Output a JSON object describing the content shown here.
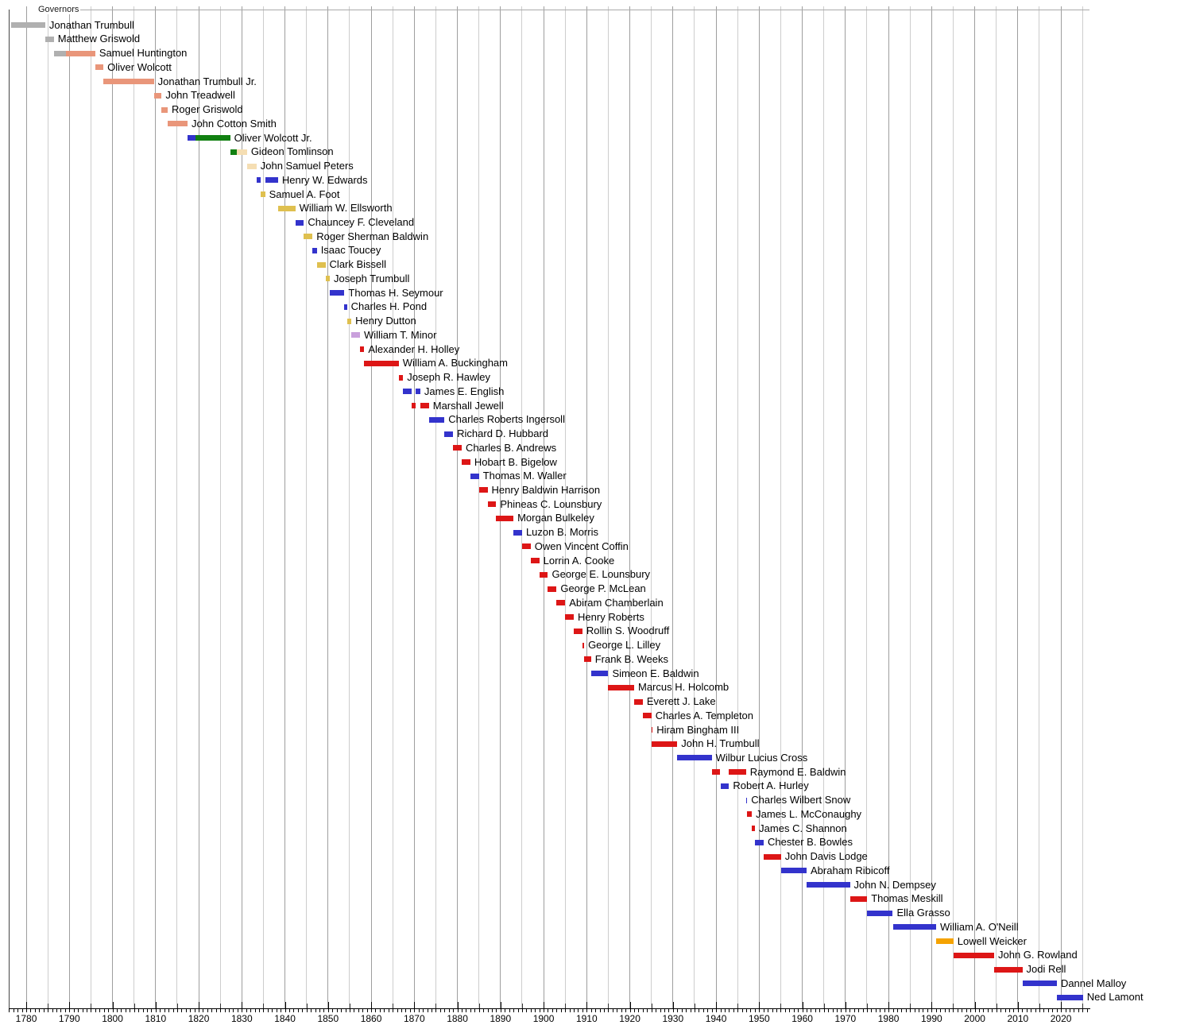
{
  "header": {
    "section_label": "Governors"
  },
  "chart_data": {
    "type": "bar",
    "variant": "timeline-gantt",
    "bar_orientation": "horizontal",
    "title": "Governors",
    "x_axis": {
      "min": 1775.9,
      "max": 2026.6,
      "major_tick_interval": 10,
      "gridline_interval": 5,
      "minor_tick_interval": 1,
      "tick_labels": [
        "1780",
        "1790",
        "1800",
        "1810",
        "1820",
        "1830",
        "1840",
        "1850",
        "1860",
        "1870",
        "1880",
        "1890",
        "1900",
        "1910",
        "1920",
        "1930",
        "1940",
        "1950",
        "1960",
        "1970",
        "1980",
        "1990",
        "2000",
        "2010",
        "2020"
      ]
    },
    "party_colors": {
      "none": "#b0b0b0",
      "federalist": "#e9967a",
      "dem_rep": "#3333cc",
      "toleration": "#118011",
      "national_republican": "#f5deb3",
      "whig": "#dfc04f",
      "know_nothing": "#c9a0dc",
      "republican": "#dd1616",
      "democratic": "#3333cc",
      "acp": "#f5a302"
    },
    "governors": [
      {
        "name": "Jonathan Trumbull",
        "segments": [
          {
            "from": 1776.5,
            "to": 1784.4,
            "party": "none"
          }
        ]
      },
      {
        "name": "Matthew Griswold",
        "segments": [
          {
            "from": 1784.4,
            "to": 1786.4,
            "party": "none"
          }
        ]
      },
      {
        "name": "Samuel Huntington",
        "segments": [
          {
            "from": 1786.4,
            "to": 1789.2,
            "party": "none"
          },
          {
            "from": 1789.2,
            "to": 1796.0,
            "party": "federalist"
          }
        ]
      },
      {
        "name": "Oliver Wolcott",
        "segments": [
          {
            "from": 1796.0,
            "to": 1797.9,
            "party": "federalist"
          }
        ]
      },
      {
        "name": "Jonathan Trumbull Jr.",
        "segments": [
          {
            "from": 1797.9,
            "to": 1809.6,
            "party": "federalist"
          }
        ]
      },
      {
        "name": "John Treadwell",
        "segments": [
          {
            "from": 1809.6,
            "to": 1811.4,
            "party": "federalist"
          }
        ]
      },
      {
        "name": "Roger Griswold",
        "segments": [
          {
            "from": 1811.4,
            "to": 1812.8,
            "party": "federalist"
          }
        ]
      },
      {
        "name": "John Cotton Smith",
        "segments": [
          {
            "from": 1812.8,
            "to": 1817.4,
            "party": "federalist"
          }
        ]
      },
      {
        "name": "Oliver Wolcott Jr.",
        "segments": [
          {
            "from": 1817.4,
            "to": 1819.2,
            "party": "dem_rep"
          },
          {
            "from": 1819.2,
            "to": 1827.3,
            "party": "toleration"
          }
        ]
      },
      {
        "name": "Gideon Tomlinson",
        "segments": [
          {
            "from": 1827.3,
            "to": 1828.8,
            "party": "toleration"
          },
          {
            "from": 1828.8,
            "to": 1831.2,
            "party": "national_republican"
          }
        ]
      },
      {
        "name": "John Samuel Peters",
        "segments": [
          {
            "from": 1831.2,
            "to": 1833.4,
            "party": "national_republican"
          }
        ]
      },
      {
        "name": "Henry W. Edwards",
        "segments": [
          {
            "from": 1833.4,
            "to": 1834.4,
            "party": "democratic"
          },
          {
            "from": 1835.4,
            "to": 1838.4,
            "party": "democratic"
          }
        ]
      },
      {
        "name": "Samuel A. Foot",
        "segments": [
          {
            "from": 1834.4,
            "to": 1835.4,
            "party": "whig"
          }
        ]
      },
      {
        "name": "William W. Ellsworth",
        "segments": [
          {
            "from": 1838.4,
            "to": 1842.4,
            "party": "whig"
          }
        ]
      },
      {
        "name": "Chauncey F. Cleveland",
        "segments": [
          {
            "from": 1842.4,
            "to": 1844.4,
            "party": "democratic"
          }
        ]
      },
      {
        "name": "Roger Sherman Baldwin",
        "segments": [
          {
            "from": 1844.4,
            "to": 1846.4,
            "party": "whig"
          }
        ]
      },
      {
        "name": "Isaac Toucey",
        "segments": [
          {
            "from": 1846.4,
            "to": 1847.4,
            "party": "democratic"
          }
        ]
      },
      {
        "name": "Clark Bissell",
        "segments": [
          {
            "from": 1847.4,
            "to": 1849.4,
            "party": "whig"
          }
        ]
      },
      {
        "name": "Joseph Trumbull",
        "segments": [
          {
            "from": 1849.4,
            "to": 1850.4,
            "party": "whig"
          }
        ]
      },
      {
        "name": "Thomas H. Seymour",
        "segments": [
          {
            "from": 1850.4,
            "to": 1853.8,
            "party": "democratic"
          }
        ]
      },
      {
        "name": "Charles H. Pond",
        "segments": [
          {
            "from": 1853.8,
            "to": 1854.4,
            "party": "democratic"
          }
        ]
      },
      {
        "name": "Henry Dutton",
        "segments": [
          {
            "from": 1854.4,
            "to": 1855.4,
            "party": "whig"
          }
        ]
      },
      {
        "name": "William T. Minor",
        "segments": [
          {
            "from": 1855.4,
            "to": 1857.4,
            "party": "know_nothing"
          }
        ]
      },
      {
        "name": "Alexander H. Holley",
        "segments": [
          {
            "from": 1857.4,
            "to": 1858.4,
            "party": "republican"
          }
        ]
      },
      {
        "name": "William A. Buckingham",
        "segments": [
          {
            "from": 1858.4,
            "to": 1866.4,
            "party": "republican"
          }
        ]
      },
      {
        "name": "Joseph R. Hawley",
        "segments": [
          {
            "from": 1866.4,
            "to": 1867.4,
            "party": "republican"
          }
        ]
      },
      {
        "name": "James E. English",
        "segments": [
          {
            "from": 1867.4,
            "to": 1869.4,
            "party": "democratic"
          },
          {
            "from": 1870.4,
            "to": 1871.4,
            "party": "democratic"
          }
        ]
      },
      {
        "name": "Marshall Jewell",
        "segments": [
          {
            "from": 1869.4,
            "to": 1870.4,
            "party": "republican"
          },
          {
            "from": 1871.4,
            "to": 1873.4,
            "party": "republican"
          }
        ]
      },
      {
        "name": "Charles Roberts Ingersoll",
        "segments": [
          {
            "from": 1873.4,
            "to": 1877.0,
            "party": "democratic"
          }
        ]
      },
      {
        "name": "Richard D. Hubbard",
        "segments": [
          {
            "from": 1877.0,
            "to": 1879.0,
            "party": "democratic"
          }
        ]
      },
      {
        "name": "Charles B. Andrews",
        "segments": [
          {
            "from": 1879.0,
            "to": 1881.0,
            "party": "republican"
          }
        ]
      },
      {
        "name": "Hobart B. Bigelow",
        "segments": [
          {
            "from": 1881.0,
            "to": 1883.0,
            "party": "republican"
          }
        ]
      },
      {
        "name": "Thomas M. Waller",
        "segments": [
          {
            "from": 1883.0,
            "to": 1885.0,
            "party": "democratic"
          }
        ]
      },
      {
        "name": "Henry Baldwin Harrison",
        "segments": [
          {
            "from": 1885.0,
            "to": 1887.0,
            "party": "republican"
          }
        ]
      },
      {
        "name": "Phineas C. Lounsbury",
        "segments": [
          {
            "from": 1887.0,
            "to": 1889.0,
            "party": "republican"
          }
        ]
      },
      {
        "name": "Morgan Bulkeley",
        "segments": [
          {
            "from": 1889.0,
            "to": 1893.0,
            "party": "republican"
          }
        ]
      },
      {
        "name": "Luzon B. Morris",
        "segments": [
          {
            "from": 1893.0,
            "to": 1895.0,
            "party": "democratic"
          }
        ]
      },
      {
        "name": "Owen Vincent Coffin",
        "segments": [
          {
            "from": 1895.0,
            "to": 1897.0,
            "party": "republican"
          }
        ]
      },
      {
        "name": "Lorrin A. Cooke",
        "segments": [
          {
            "from": 1897.0,
            "to": 1899.0,
            "party": "republican"
          }
        ]
      },
      {
        "name": "George E. Lounsbury",
        "segments": [
          {
            "from": 1899.0,
            "to": 1901.0,
            "party": "republican"
          }
        ]
      },
      {
        "name": "George P. McLean",
        "segments": [
          {
            "from": 1901.0,
            "to": 1903.0,
            "party": "republican"
          }
        ]
      },
      {
        "name": "Abiram Chamberlain",
        "segments": [
          {
            "from": 1903.0,
            "to": 1905.0,
            "party": "republican"
          }
        ]
      },
      {
        "name": "Henry Roberts",
        "segments": [
          {
            "from": 1905.0,
            "to": 1907.0,
            "party": "republican"
          }
        ]
      },
      {
        "name": "Rollin S. Woodruff",
        "segments": [
          {
            "from": 1907.0,
            "to": 1909.0,
            "party": "republican"
          }
        ]
      },
      {
        "name": "George L. Lilley",
        "segments": [
          {
            "from": 1909.0,
            "to": 1909.4,
            "party": "republican"
          }
        ]
      },
      {
        "name": "Frank B. Weeks",
        "segments": [
          {
            "from": 1909.4,
            "to": 1911.0,
            "party": "republican"
          }
        ]
      },
      {
        "name": "Simeon E. Baldwin",
        "segments": [
          {
            "from": 1911.0,
            "to": 1915.0,
            "party": "democratic"
          }
        ]
      },
      {
        "name": "Marcus H. Holcomb",
        "segments": [
          {
            "from": 1915.0,
            "to": 1921.0,
            "party": "republican"
          }
        ]
      },
      {
        "name": "Everett J. Lake",
        "segments": [
          {
            "from": 1921.0,
            "to": 1923.0,
            "party": "republican"
          }
        ]
      },
      {
        "name": "Charles A. Templeton",
        "segments": [
          {
            "from": 1923.0,
            "to": 1925.0,
            "party": "republican"
          }
        ]
      },
      {
        "name": "Hiram Bingham III",
        "segments": [
          {
            "from": 1925.0,
            "to": 1925.25,
            "party": "republican"
          }
        ]
      },
      {
        "name": "John H. Trumbull",
        "segments": [
          {
            "from": 1925.05,
            "to": 1931.0,
            "party": "republican"
          }
        ]
      },
      {
        "name": "Wilbur Lucius Cross",
        "segments": [
          {
            "from": 1931.0,
            "to": 1939.0,
            "party": "democratic"
          }
        ]
      },
      {
        "name": "Raymond E. Baldwin",
        "segments": [
          {
            "from": 1939.0,
            "to": 1941.0,
            "party": "republican"
          },
          {
            "from": 1943.0,
            "to": 1946.95,
            "party": "republican"
          }
        ]
      },
      {
        "name": "Robert A. Hurley",
        "segments": [
          {
            "from": 1941.0,
            "to": 1943.0,
            "party": "democratic"
          }
        ]
      },
      {
        "name": "Charles Wilbert Snow",
        "segments": [
          {
            "from": 1946.95,
            "to": 1947.15,
            "party": "democratic"
          }
        ]
      },
      {
        "name": "James L. McConaughy",
        "segments": [
          {
            "from": 1947.15,
            "to": 1948.3,
            "party": "republican"
          }
        ]
      },
      {
        "name": "James C. Shannon",
        "segments": [
          {
            "from": 1948.3,
            "to": 1949.05,
            "party": "republican"
          }
        ]
      },
      {
        "name": "Chester B. Bowles",
        "segments": [
          {
            "from": 1949.05,
            "to": 1951.05,
            "party": "democratic"
          }
        ]
      },
      {
        "name": "John Davis Lodge",
        "segments": [
          {
            "from": 1951.05,
            "to": 1955.05,
            "party": "republican"
          }
        ]
      },
      {
        "name": "Abraham Ribicoff",
        "segments": [
          {
            "from": 1955.05,
            "to": 1961.0,
            "party": "democratic"
          }
        ]
      },
      {
        "name": "John N. Dempsey",
        "segments": [
          {
            "from": 1961.0,
            "to": 1971.05,
            "party": "democratic"
          }
        ]
      },
      {
        "name": "Thomas Meskill",
        "segments": [
          {
            "from": 1971.05,
            "to": 1975.05,
            "party": "republican"
          }
        ]
      },
      {
        "name": "Ella Grasso",
        "segments": [
          {
            "from": 1975.05,
            "to": 1981.0,
            "party": "democratic"
          }
        ]
      },
      {
        "name": "William A. O'Neill",
        "segments": [
          {
            "from": 1981.0,
            "to": 1991.05,
            "party": "democratic"
          }
        ]
      },
      {
        "name": "Lowell Weicker",
        "segments": [
          {
            "from": 1991.05,
            "to": 1995.05,
            "party": "acp"
          }
        ]
      },
      {
        "name": "John G. Rowland",
        "segments": [
          {
            "from": 1995.05,
            "to": 2004.5,
            "party": "republican"
          }
        ]
      },
      {
        "name": "Jodi Rell",
        "segments": [
          {
            "from": 2004.5,
            "to": 2011.05,
            "party": "republican"
          }
        ]
      },
      {
        "name": "Dannel Malloy",
        "segments": [
          {
            "from": 2011.05,
            "to": 2019.05,
            "party": "democratic"
          }
        ]
      },
      {
        "name": "Ned Lamont",
        "segments": [
          {
            "from": 2019.05,
            "to": 2025.1,
            "party": "democratic"
          }
        ]
      }
    ]
  }
}
